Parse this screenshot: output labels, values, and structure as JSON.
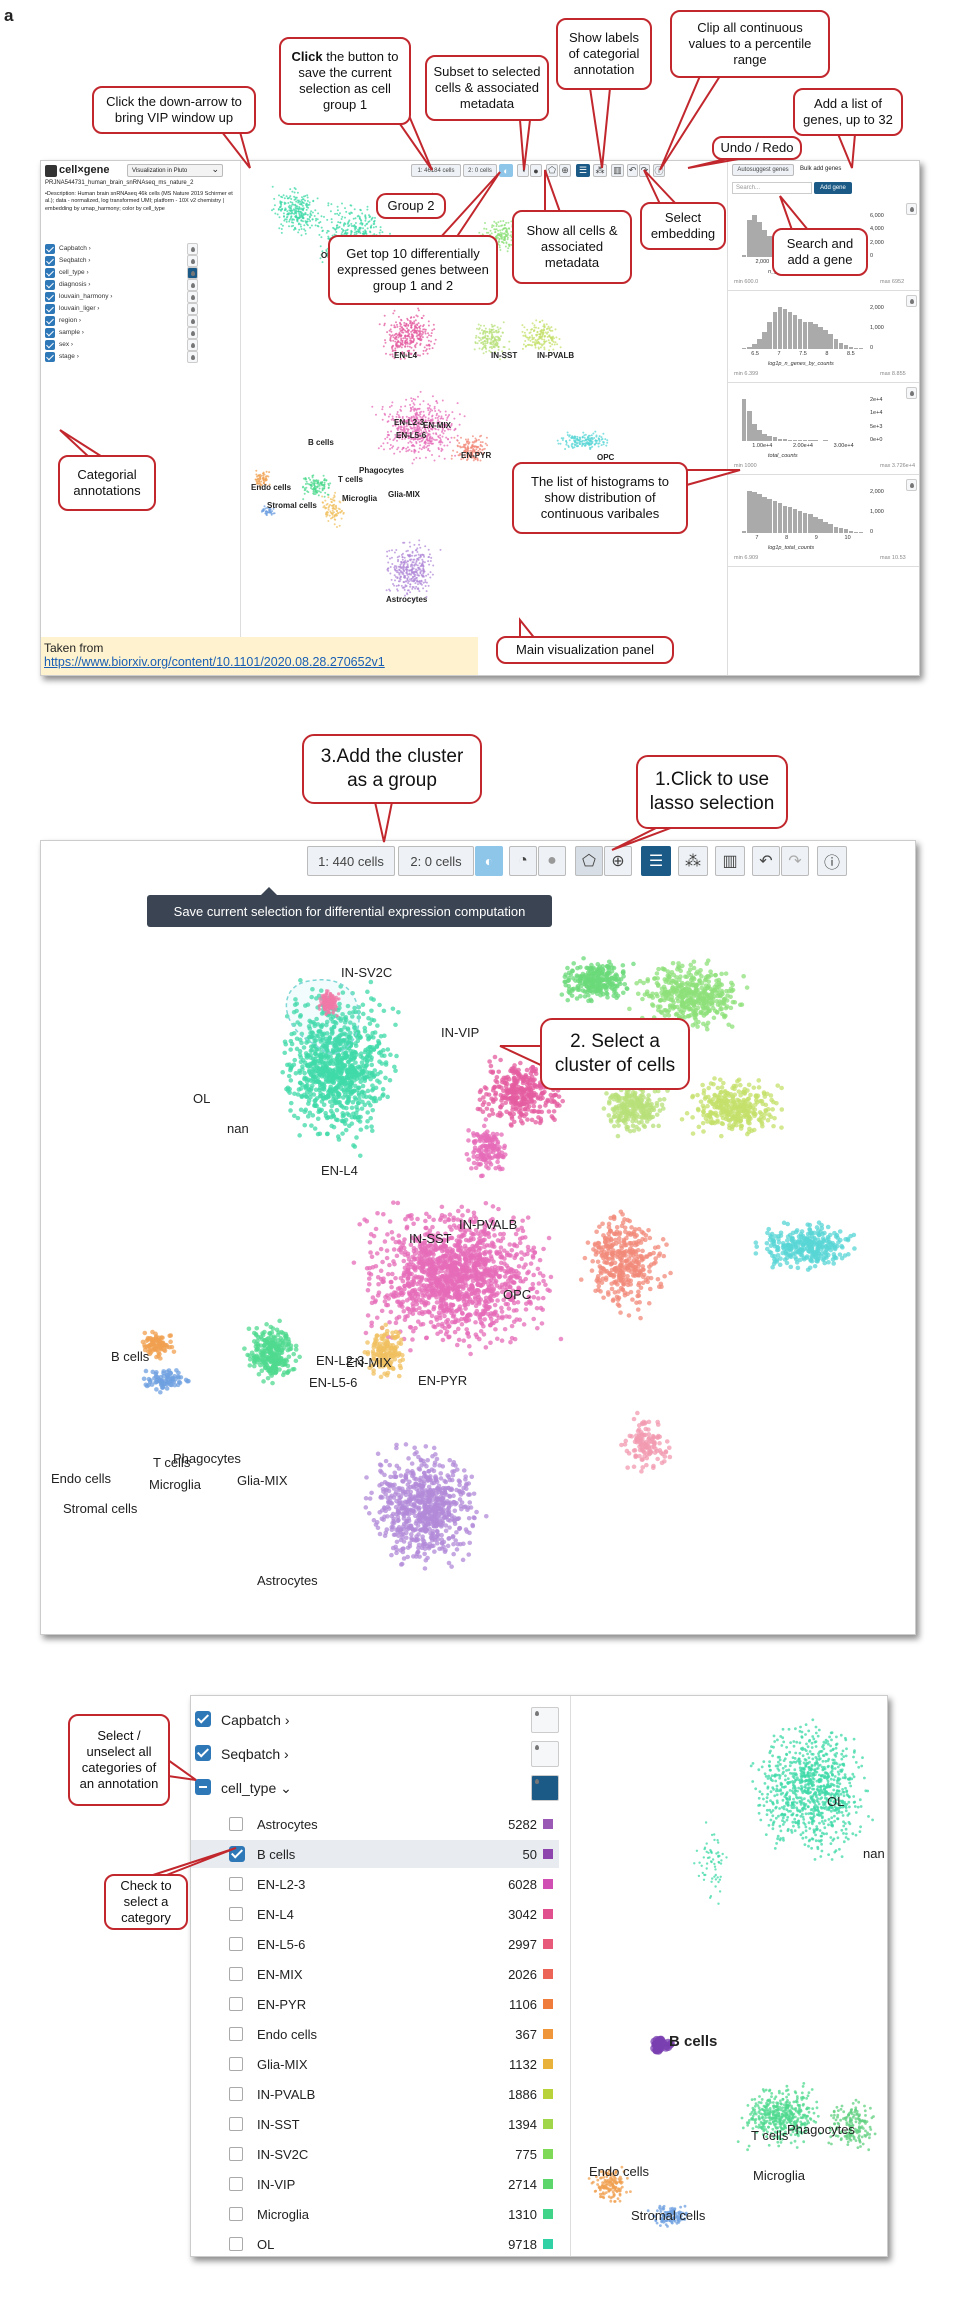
{
  "figure_label": "a",
  "panel1": {
    "logo_text": "cell×gene",
    "vip_button": "Visualization in Pluto",
    "dataset_id": "PRJNA544731_human_brain_snRNAseq_ms_nature_2",
    "description": "•Description: Human brain snRNAseq 46k cells (MS Nature 2019 Schirmer et al.); data - normalized, log transformed UMI; platform - 10X v2 chemistry | embedding by umap_harmony; color by cell_type",
    "annotations": [
      "Capbatch",
      "Seqbatch",
      "cell_type",
      "diagnosis",
      "louvain_harmony",
      "louvain_liger",
      "region",
      "sample",
      "sex",
      "stage"
    ],
    "group1_btn": "1: 46184 cells",
    "group2_btn": "2: 0 cells",
    "autosuggest_btn": "Autosuggest genes",
    "bulk_add_btn": "Bulk add genes",
    "search_placeholder": "Search...",
    "add_gene_btn": "Add gene",
    "histograms": [
      {
        "name": "n_genes_by_counts",
        "min": "min 600.0",
        "max": "max 6952",
        "ticks": [
          "2,000",
          "4,000",
          "6,000"
        ],
        "yticks": [
          "6,000",
          "4,000",
          "2,000",
          "0"
        ]
      },
      {
        "name": "log1p_n_genes_by_counts",
        "min": "min 6.399",
        "max": "max 8.855",
        "ticks": [
          "6.5",
          "7",
          "7.5",
          "8",
          "8.5"
        ],
        "yticks": [
          "2,000",
          "1,000",
          "0"
        ]
      },
      {
        "name": "total_counts",
        "min": "min 1000",
        "max": "max 3.726e+4",
        "ticks": [
          "1.00e+4",
          "2.00e+4",
          "3.00e+4"
        ],
        "yticks": [
          "2e+4",
          "1e+4",
          "5e+3",
          "0e+0"
        ]
      },
      {
        "name": "log1p_total_counts",
        "min": "min 6.909",
        "max": "max 10.53",
        "ticks": [
          "7",
          "8",
          "9",
          "10"
        ],
        "yticks": [
          "2,000",
          "1,000",
          "0"
        ]
      }
    ],
    "cluster_labels": [
      "OL",
      "nan",
      "EN-L4",
      "IN-SST",
      "IN-PVALB",
      "OPC",
      "EN-L2-3",
      "EN-MIX",
      "EN-L5-6",
      "EN-PYR",
      "B cells",
      "T cells",
      "Phagocytes",
      "Endo cells",
      "Microglia",
      "Glia-MIX",
      "Stromal cells",
      "Astrocytes"
    ],
    "source_note_title": "Taken from",
    "source_note_link": "https://www.biorxiv.org/content/10.1101/2020.08.28.270652v1",
    "callouts": {
      "vip": "Click the down-arrow to bring VIP window up",
      "save_group_bold": "Click",
      "save_group_rest": " the button to save the current selection as cell group 1",
      "subset": "Subset to selected cells & associated metadata",
      "show_labels": "Show labels of categorial annotation",
      "clip": "Clip all continuous values to a percentile range",
      "add_genes": "Add a list of genes, up to 32",
      "undo": "Undo / Redo",
      "group2": "Group 2",
      "show_all": "Show all cells & associated metadata",
      "select_embedding": "Select embedding",
      "search_gene": "Search and add a gene",
      "top10": "Get top 10 differentially expressed genes between group 1 and 2",
      "categorial": "Categorial annotations",
      "hist_list": "The list of histograms to show distribution of continuous varibales",
      "main_panel": "Main visualization panel"
    }
  },
  "panel2": {
    "group1_btn": "1: 440 cells",
    "group2_btn": "2: 0 cells",
    "tooltip": "Save current selection for differential expression computation",
    "callout_add": "3.Add the cluster as a group",
    "callout_lasso": "1.Click to use lasso selection",
    "callout_select": "2. Select a cluster of cells",
    "cluster_labels": [
      "IN-SV2C",
      "IN-VIP",
      "OL",
      "nan",
      "EN-L4",
      "IN-SST",
      "IN-PVALB",
      "OPC",
      "B cells",
      "EN-L2-3",
      "EN-MIX",
      "EN-L5-6",
      "EN-PYR",
      "T cells",
      "Phagocytes",
      "Endo cells",
      "Microglia",
      "Glia-MIX",
      "Stromal cells",
      "Astrocytes"
    ]
  },
  "panel3": {
    "annotations": [
      "Capbatch",
      "Seqbatch",
      "cell_type"
    ],
    "categories": [
      {
        "name": "Astrocytes",
        "count": "5282",
        "color": "#9b59b6",
        "checked": false
      },
      {
        "name": "B cells",
        "count": "50",
        "color": "#8e44ad",
        "checked": true
      },
      {
        "name": "EN-L2-3",
        "count": "6028",
        "color": "#d04fb3",
        "checked": false
      },
      {
        "name": "EN-L4",
        "count": "3042",
        "color": "#e0508f",
        "checked": false
      },
      {
        "name": "EN-L5-6",
        "count": "2997",
        "color": "#e85a7a",
        "checked": false
      },
      {
        "name": "EN-MIX",
        "count": "2026",
        "color": "#ec6456",
        "checked": false
      },
      {
        "name": "EN-PYR",
        "count": "1106",
        "color": "#f07c3c",
        "checked": false
      },
      {
        "name": "Endo cells",
        "count": "367",
        "color": "#f0963a",
        "checked": false
      },
      {
        "name": "Glia-MIX",
        "count": "1132",
        "color": "#e8b13a",
        "checked": false
      },
      {
        "name": "IN-PVALB",
        "count": "1886",
        "color": "#b8d23a",
        "checked": false
      },
      {
        "name": "IN-SST",
        "count": "1394",
        "color": "#a0d64a",
        "checked": false
      },
      {
        "name": "IN-SV2C",
        "count": "775",
        "color": "#7ed957",
        "checked": false
      },
      {
        "name": "IN-VIP",
        "count": "2714",
        "color": "#5cd66a",
        "checked": false
      },
      {
        "name": "Microglia",
        "count": "1310",
        "color": "#3fd487",
        "checked": false
      },
      {
        "name": "OL",
        "count": "9718",
        "color": "#32d0a5",
        "checked": false
      }
    ],
    "cluster_labels": [
      "OL",
      "nan",
      "B cells",
      "T cells",
      "Phagocytes",
      "Endo cells",
      "Microglia",
      "Stromal cells"
    ],
    "callout_select_all": "Select / unselect all categories of an annotation",
    "callout_check": "Check to select a category"
  }
}
